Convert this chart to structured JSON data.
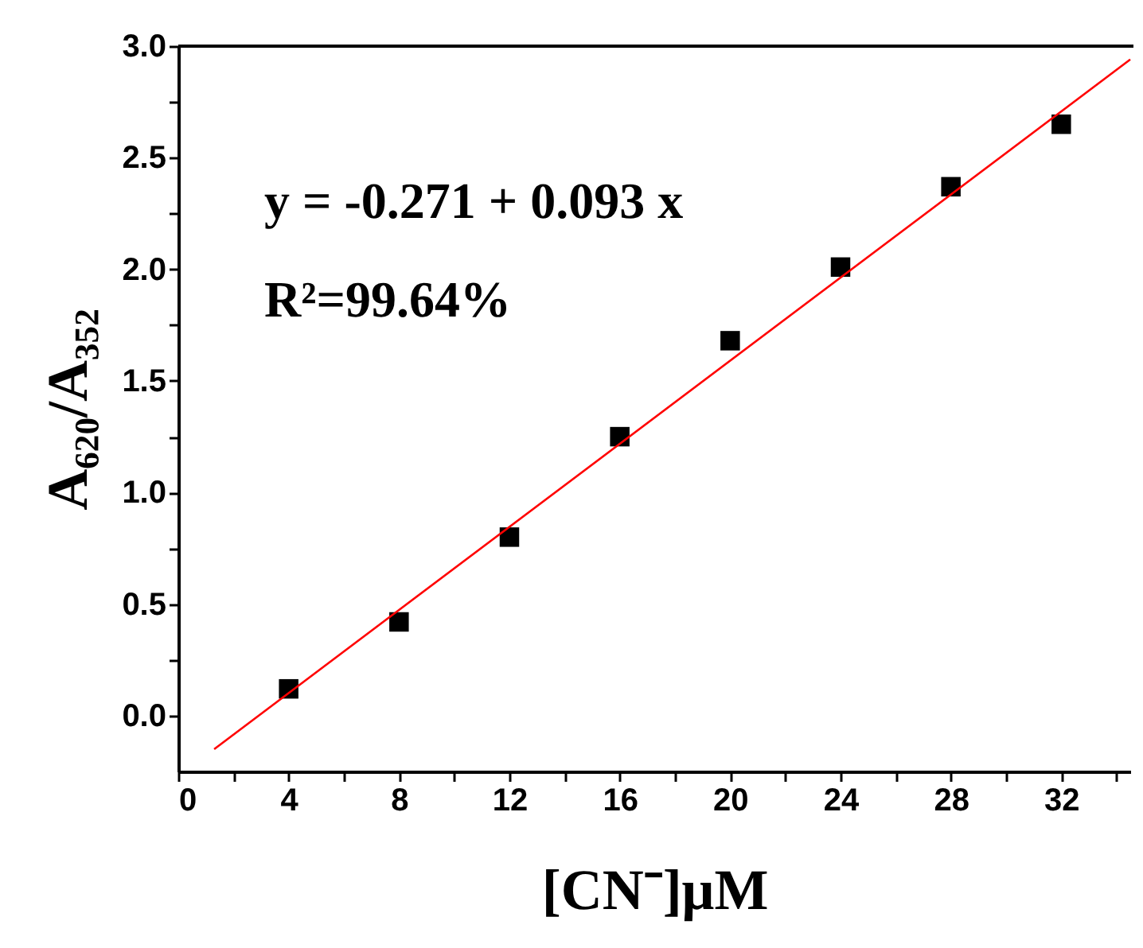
{
  "chart_data": {
    "type": "scatter",
    "xlabel": "[CN⁻]μM",
    "ylabel": "A₆₂₀/A₃₅₂",
    "annotations": [
      "y = -0.271 + 0.093 x",
      "R²=99.64%"
    ],
    "xlim": [
      0,
      34.5
    ],
    "ylim": [
      -0.25,
      3.0
    ],
    "xticks": [
      0,
      {
        "value": 2,
        "label": null
      },
      4,
      {
        "value": 6,
        "label": null
      },
      8,
      {
        "value": 10,
        "label": null
      },
      12,
      {
        "value": 14,
        "label": null
      },
      16,
      {
        "value": 18,
        "label": null
      },
      20,
      {
        "value": 22,
        "label": null
      },
      24,
      {
        "value": 26,
        "label": null
      },
      28,
      {
        "value": 30,
        "label": null
      },
      32,
      {
        "value": 34,
        "label": null
      }
    ],
    "yticks": [
      {
        "value": 0.0,
        "label": "0.0"
      },
      {
        "value": 0.25,
        "label": null
      },
      {
        "value": 0.5,
        "label": "0.5"
      },
      {
        "value": 0.75,
        "label": null
      },
      {
        "value": 1.0,
        "label": "1.0"
      },
      {
        "value": 1.25,
        "label": null
      },
      {
        "value": 1.5,
        "label": "1.5"
      },
      {
        "value": 1.75,
        "label": null
      },
      {
        "value": 2.0,
        "label": "2.0"
      },
      {
        "value": 2.25,
        "label": null
      },
      {
        "value": 2.5,
        "label": "2.5"
      },
      {
        "value": 2.75,
        "label": null
      },
      {
        "value": 3.0,
        "label": "3.0"
      }
    ],
    "grid": false,
    "series": [
      {
        "marker": "square",
        "color": "#000000",
        "x": [
          4,
          8,
          12,
          16,
          20,
          24,
          28,
          32
        ],
        "values": [
          0.12,
          0.42,
          0.8,
          1.25,
          1.68,
          2.01,
          2.37,
          2.65
        ]
      },
      {
        "type": "line",
        "color": "#ff0000",
        "x": [
          1.3,
          34.5
        ],
        "values": [
          -0.15,
          2.94
        ]
      }
    ]
  }
}
